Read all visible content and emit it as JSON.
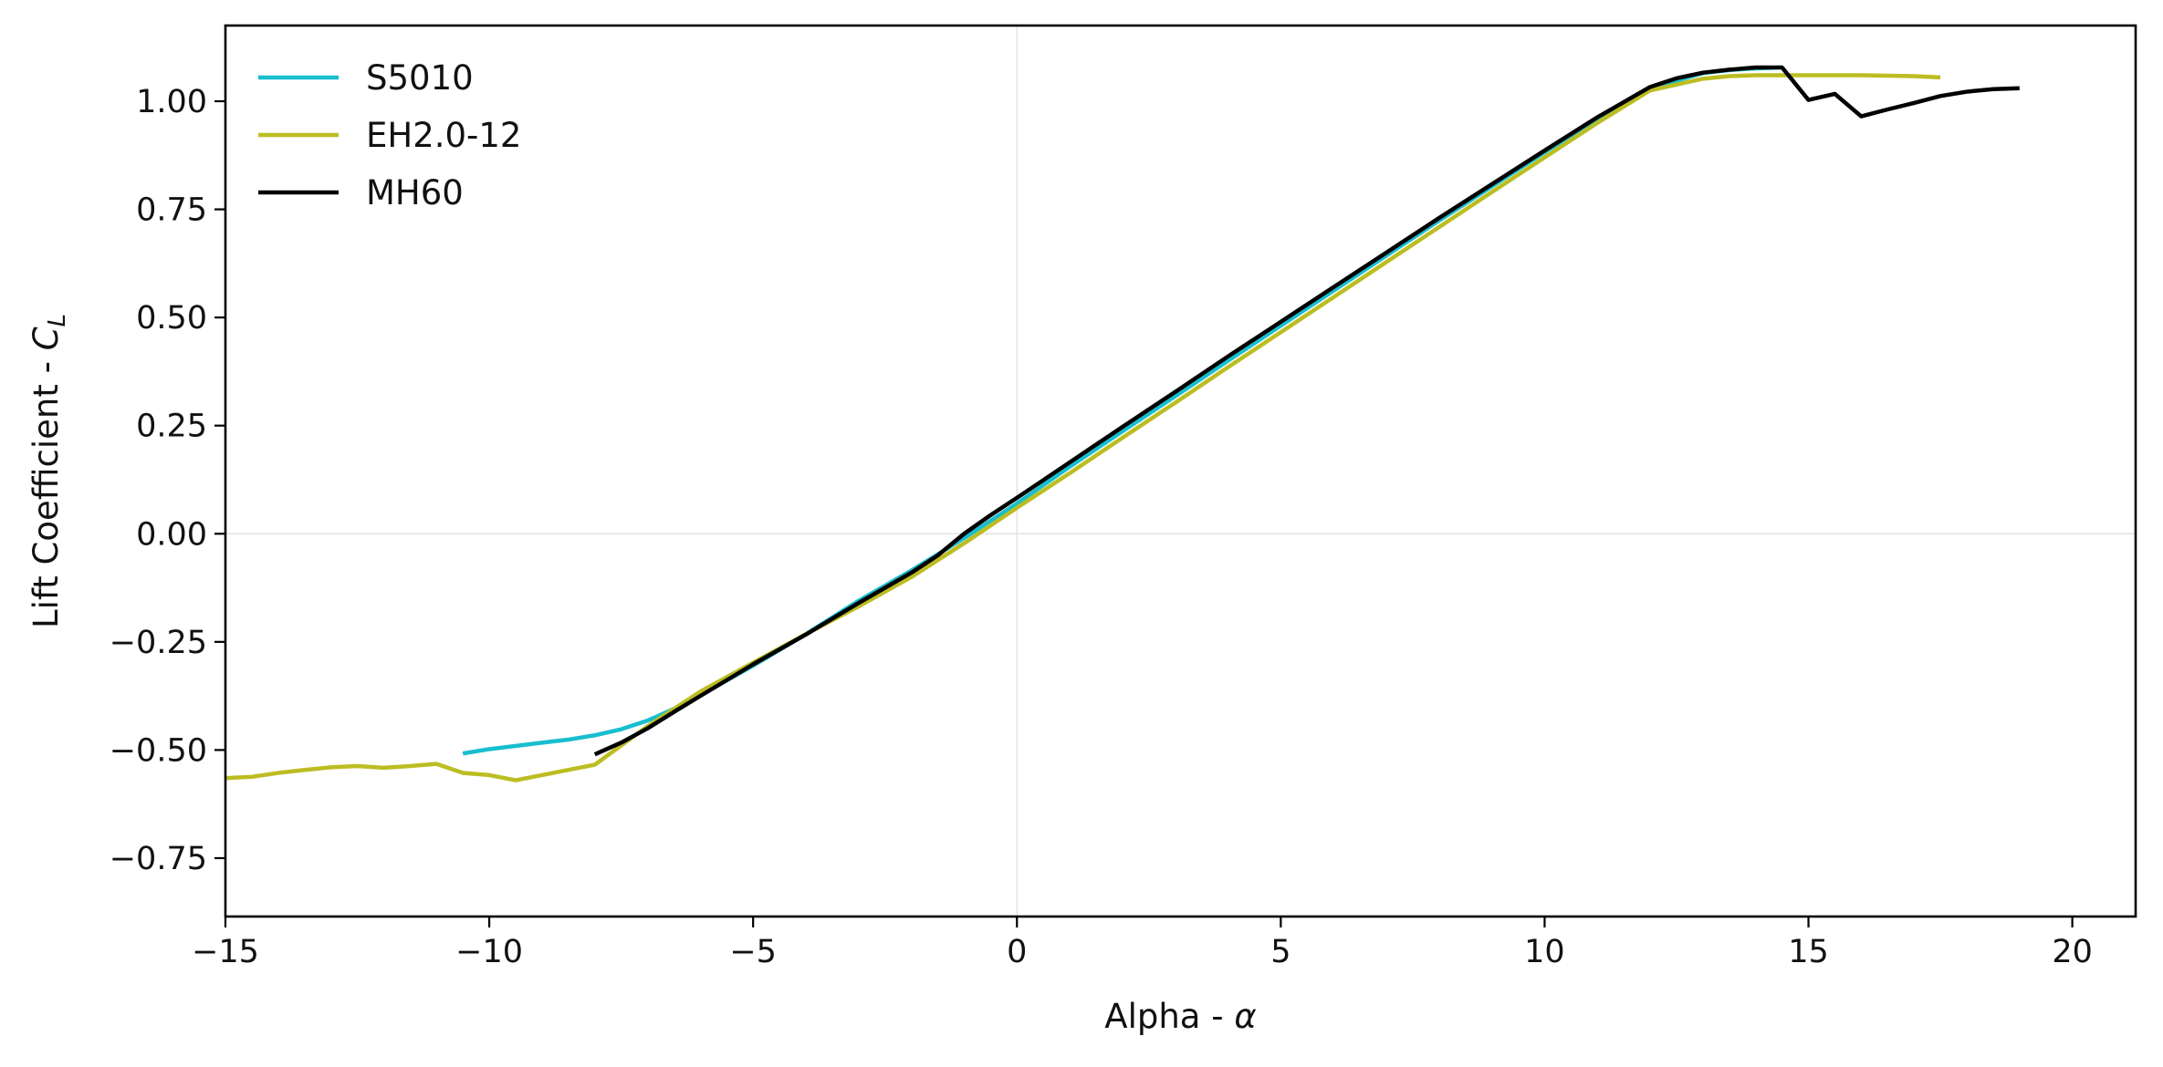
{
  "chart_data": {
    "type": "line",
    "title": "",
    "xlabel_prefix": "Alpha - ",
    "xlabel_symbol": "α",
    "ylabel_prefix": "Lift Coefficient - ",
    "ylabel_symbol": "C",
    "ylabel_subscript": "L",
    "xlim": [
      -15,
      21.2
    ],
    "ylim": [
      -0.885,
      1.175
    ],
    "xticks": [
      -15,
      -10,
      -5,
      0,
      5,
      10,
      15,
      20
    ],
    "xtick_labels": [
      "−15",
      "−10",
      "−5",
      "0",
      "5",
      "10",
      "15",
      "20"
    ],
    "yticks": [
      -0.75,
      -0.5,
      -0.25,
      0.0,
      0.25,
      0.5,
      0.75,
      1.0
    ],
    "ytick_labels": [
      "−0.75",
      "−0.50",
      "−0.25",
      "0.00",
      "0.25",
      "0.50",
      "0.75",
      "1.00"
    ],
    "grid": false,
    "zero_lines": true,
    "legend_position": "upper-left",
    "series": [
      {
        "name": "S5010",
        "color": "#17becf",
        "x": [
          -10.5,
          -10,
          -9,
          -8.5,
          -8,
          -7.5,
          -7,
          -6.5,
          -6,
          -5,
          -4,
          -3,
          -2,
          -1,
          0,
          1,
          2,
          3,
          4,
          5,
          6,
          7,
          8,
          9,
          10,
          11,
          12,
          13,
          13.5,
          14,
          14.5
        ],
        "y": [
          -0.508,
          -0.498,
          -0.483,
          -0.476,
          -0.466,
          -0.452,
          -0.432,
          -0.405,
          -0.373,
          -0.305,
          -0.232,
          -0.155,
          -0.085,
          -0.01,
          0.07,
          0.155,
          0.237,
          0.318,
          0.4,
          0.481,
          0.562,
          0.643,
          0.724,
          0.803,
          0.882,
          0.96,
          1.03,
          1.065,
          1.072,
          1.076,
          1.078
        ]
      },
      {
        "name": "EH2.0-12",
        "color": "#bcbd22",
        "x": [
          -15,
          -14.5,
          -14,
          -13.5,
          -13,
          -12.5,
          -12,
          -11.5,
          -11,
          -10.5,
          -10,
          -9.5,
          -9,
          -8.5,
          -8,
          -7,
          -6,
          -5,
          -4,
          -3,
          -2,
          -1,
          0,
          1,
          2,
          3,
          4,
          5,
          6,
          7,
          8,
          9,
          10,
          11,
          12,
          13,
          13.5,
          14,
          15,
          16,
          17,
          17.5
        ],
        "y": [
          -0.565,
          -0.562,
          -0.553,
          -0.546,
          -0.54,
          -0.537,
          -0.541,
          -0.537,
          -0.532,
          -0.553,
          -0.558,
          -0.57,
          -0.558,
          -0.546,
          -0.534,
          -0.445,
          -0.365,
          -0.298,
          -0.232,
          -0.168,
          -0.1,
          -0.022,
          0.06,
          0.14,
          0.222,
          0.303,
          0.385,
          0.466,
          0.547,
          0.628,
          0.709,
          0.79,
          0.87,
          0.95,
          1.025,
          1.052,
          1.058,
          1.06,
          1.06,
          1.06,
          1.058,
          1.055
        ]
      },
      {
        "name": "MH60",
        "color": "#000000",
        "x": [
          -8,
          -7.5,
          -7,
          -6.5,
          -6,
          -5,
          -4,
          -3,
          -2,
          -1.5,
          -1,
          -0.5,
          0,
          1,
          2,
          3,
          4,
          5,
          6,
          7,
          8,
          9,
          10,
          11,
          12,
          12.5,
          13,
          13.5,
          14,
          14.5,
          15,
          15.5,
          16,
          16.5,
          17,
          17.5,
          18,
          18.5,
          19
        ],
        "y": [
          -0.51,
          -0.483,
          -0.45,
          -0.412,
          -0.375,
          -0.302,
          -0.233,
          -0.16,
          -0.09,
          -0.05,
          0.0,
          0.043,
          0.083,
          0.165,
          0.247,
          0.328,
          0.41,
          0.49,
          0.57,
          0.65,
          0.73,
          0.808,
          0.886,
          0.963,
          1.033,
          1.053,
          1.066,
          1.073,
          1.078,
          1.078,
          1.003,
          1.017,
          0.965,
          0.981,
          0.996,
          1.012,
          1.022,
          1.028,
          1.03
        ]
      }
    ]
  }
}
